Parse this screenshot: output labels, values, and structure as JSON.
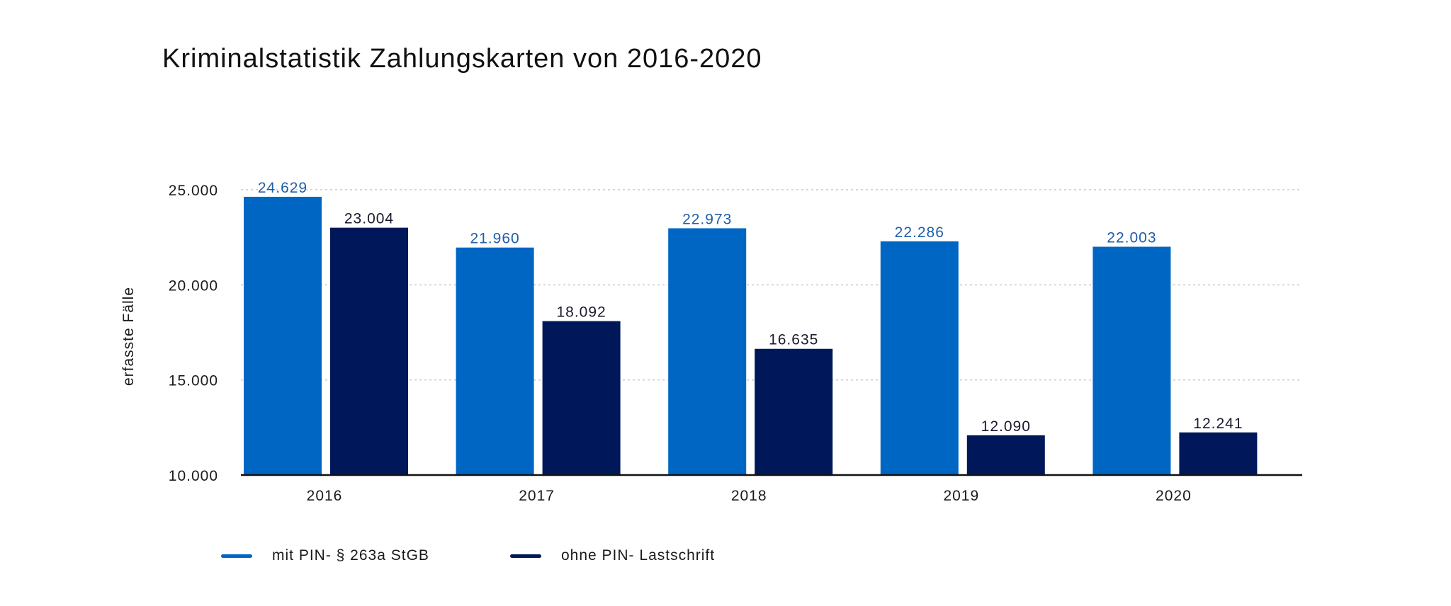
{
  "chart_data": {
    "type": "bar",
    "title": "Kriminalstatistik Zahlungskarten von 2016-2020",
    "xlabel": "",
    "ylabel": "erfasste Fälle",
    "ylim": [
      10000,
      25000
    ],
    "yticks": [
      10000,
      15000,
      20000,
      25000
    ],
    "ytick_labels": [
      "10.000",
      "15.000",
      "20.000",
      "25.000"
    ],
    "grid": true,
    "legend_position": "bottom-left",
    "categories": [
      "2016",
      "2017",
      "2018",
      "2019",
      "2020"
    ],
    "series": [
      {
        "name": "mit PIN- § 263a StGB",
        "color": "#0066c4",
        "label_color": "#1f5ea8",
        "values": [
          24629,
          21960,
          22973,
          22286,
          22003
        ],
        "labels": [
          "24.629",
          "21.960",
          "22.973",
          "22.286",
          "22.003"
        ]
      },
      {
        "name": "ohne PIN- Lastschrift",
        "color": "#00185a",
        "label_color": "#1a1a2e",
        "values": [
          23004,
          18092,
          16635,
          12090,
          12241
        ],
        "labels": [
          "23.004",
          "18.092",
          "16.635",
          "12.090",
          "12.241"
        ]
      }
    ]
  }
}
